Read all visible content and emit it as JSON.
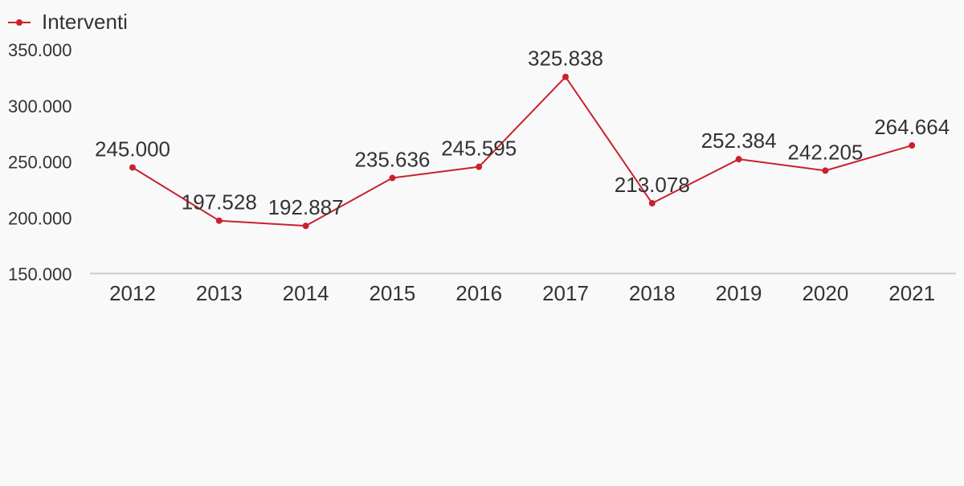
{
  "chart_data": {
    "type": "line",
    "title": "",
    "xlabel": "",
    "ylabel": "",
    "categories": [
      "2012",
      "2013",
      "2014",
      "2015",
      "2016",
      "2017",
      "2018",
      "2019",
      "2020",
      "2021"
    ],
    "series": [
      {
        "name": "Interventi",
        "values": [
          245000,
          197528,
          192887,
          235636,
          245595,
          325838,
          213078,
          252384,
          242205,
          264664
        ],
        "labels": [
          "245.000",
          "197.528",
          "192.887",
          "235.636",
          "245.595",
          "325.838",
          "213.078",
          "252.384",
          "242.205",
          "264.664"
        ]
      }
    ],
    "ylim": [
      150000,
      350000
    ],
    "y_ticks": [
      350000,
      300000,
      250000,
      200000,
      150000
    ],
    "y_tick_labels": [
      "350.000",
      "300.000",
      "250.000",
      "200.000",
      "150.000"
    ],
    "grid": false,
    "legend_position": "top-left",
    "colors": {
      "series": "#c8222c",
      "text": "#333333",
      "axis": "#cccccc",
      "background": "#f9f9f9"
    }
  }
}
